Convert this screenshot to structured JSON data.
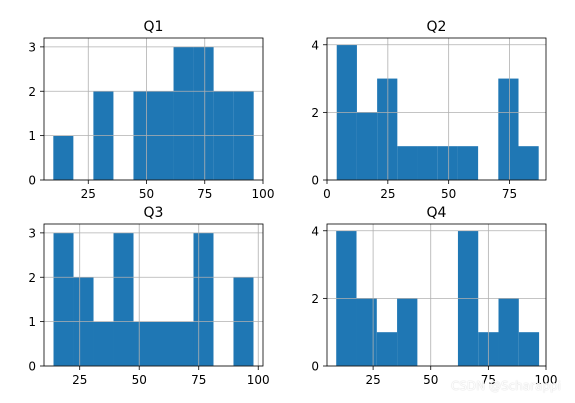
{
  "colors": {
    "bar": "#1f77b4",
    "grid": "#b0b0b0",
    "axis": "#000000",
    "background": "#ffffff"
  },
  "watermark": "CSDN @Scharappi",
  "chart_data": [
    {
      "type": "bar",
      "title": "Q1",
      "grid": true,
      "xlim": [
        6,
        100
      ],
      "ylim": [
        0,
        3.2
      ],
      "xticks": [
        {
          "value": 25,
          "label": "25"
        },
        {
          "value": 50,
          "label": "50"
        },
        {
          "value": 75,
          "label": "75"
        },
        {
          "value": 100,
          "label": "100"
        }
      ],
      "yticks": [
        {
          "value": 0,
          "label": "0"
        },
        {
          "value": 1,
          "label": "1"
        },
        {
          "value": 2,
          "label": "2"
        },
        {
          "value": 3,
          "label": "3"
        }
      ],
      "bins": [
        {
          "x0": 10.0,
          "x1": 18.6,
          "count": 1
        },
        {
          "x0": 18.6,
          "x1": 27.2,
          "count": 0
        },
        {
          "x0": 27.2,
          "x1": 35.8,
          "count": 2
        },
        {
          "x0": 35.8,
          "x1": 44.4,
          "count": 0
        },
        {
          "x0": 44.4,
          "x1": 53.0,
          "count": 2
        },
        {
          "x0": 53.0,
          "x1": 61.6,
          "count": 2
        },
        {
          "x0": 61.6,
          "x1": 70.2,
          "count": 3
        },
        {
          "x0": 70.2,
          "x1": 78.8,
          "count": 3
        },
        {
          "x0": 78.8,
          "x1": 87.4,
          "count": 2
        },
        {
          "x0": 87.4,
          "x1": 96.0,
          "count": 2
        }
      ]
    },
    {
      "type": "bar",
      "title": "Q2",
      "grid": true,
      "xlim": [
        0,
        90
      ],
      "ylim": [
        0,
        4.2
      ],
      "xticks": [
        {
          "value": 0,
          "label": "0"
        },
        {
          "value": 25,
          "label": "25"
        },
        {
          "value": 50,
          "label": "50"
        },
        {
          "value": 75,
          "label": "75"
        }
      ],
      "yticks": [
        {
          "value": 0,
          "label": "0"
        },
        {
          "value": 2,
          "label": "2"
        },
        {
          "value": 4,
          "label": "4"
        }
      ],
      "bins": [
        {
          "x0": 4.0,
          "x1": 12.3,
          "count": 4
        },
        {
          "x0": 12.3,
          "x1": 20.6,
          "count": 2
        },
        {
          "x0": 20.6,
          "x1": 28.9,
          "count": 3
        },
        {
          "x0": 28.9,
          "x1": 37.2,
          "count": 1
        },
        {
          "x0": 37.2,
          "x1": 45.5,
          "count": 1
        },
        {
          "x0": 45.5,
          "x1": 53.8,
          "count": 1
        },
        {
          "x0": 53.8,
          "x1": 62.1,
          "count": 1
        },
        {
          "x0": 62.1,
          "x1": 70.4,
          "count": 0
        },
        {
          "x0": 70.4,
          "x1": 78.7,
          "count": 3
        },
        {
          "x0": 78.7,
          "x1": 87.0,
          "count": 1
        }
      ]
    },
    {
      "type": "bar",
      "title": "Q3",
      "grid": true,
      "xlim": [
        10,
        102
      ],
      "ylim": [
        0,
        3.2
      ],
      "xticks": [
        {
          "value": 25,
          "label": "25"
        },
        {
          "value": 50,
          "label": "50"
        },
        {
          "value": 75,
          "label": "75"
        },
        {
          "value": 100,
          "label": "100"
        }
      ],
      "yticks": [
        {
          "value": 0,
          "label": "0"
        },
        {
          "value": 1,
          "label": "1"
        },
        {
          "value": 2,
          "label": "2"
        },
        {
          "value": 3,
          "label": "3"
        }
      ],
      "bins": [
        {
          "x0": 14.0,
          "x1": 22.4,
          "count": 3
        },
        {
          "x0": 22.4,
          "x1": 30.8,
          "count": 2
        },
        {
          "x0": 30.8,
          "x1": 39.2,
          "count": 1
        },
        {
          "x0": 39.2,
          "x1": 47.6,
          "count": 3
        },
        {
          "x0": 47.6,
          "x1": 56.0,
          "count": 1
        },
        {
          "x0": 56.0,
          "x1": 64.4,
          "count": 1
        },
        {
          "x0": 64.4,
          "x1": 72.8,
          "count": 1
        },
        {
          "x0": 72.8,
          "x1": 81.2,
          "count": 3
        },
        {
          "x0": 81.2,
          "x1": 89.6,
          "count": 0
        },
        {
          "x0": 89.6,
          "x1": 98.0,
          "count": 2
        }
      ]
    },
    {
      "type": "bar",
      "title": "Q4",
      "grid": true,
      "xlim": [
        5,
        100
      ],
      "ylim": [
        0,
        4.2
      ],
      "xticks": [
        {
          "value": 25,
          "label": "25"
        },
        {
          "value": 50,
          "label": "50"
        },
        {
          "value": 75,
          "label": "75"
        },
        {
          "value": 100,
          "label": "100"
        }
      ],
      "yticks": [
        {
          "value": 0,
          "label": "0"
        },
        {
          "value": 2,
          "label": "2"
        },
        {
          "value": 4,
          "label": "4"
        }
      ],
      "bins": [
        {
          "x0": 9.0,
          "x1": 17.8,
          "count": 4
        },
        {
          "x0": 17.8,
          "x1": 26.6,
          "count": 2
        },
        {
          "x0": 26.6,
          "x1": 35.4,
          "count": 1
        },
        {
          "x0": 35.4,
          "x1": 44.2,
          "count": 2
        },
        {
          "x0": 44.2,
          "x1": 53.0,
          "count": 0
        },
        {
          "x0": 53.0,
          "x1": 61.8,
          "count": 0
        },
        {
          "x0": 61.8,
          "x1": 70.6,
          "count": 4
        },
        {
          "x0": 70.6,
          "x1": 79.4,
          "count": 1
        },
        {
          "x0": 79.4,
          "x1": 88.2,
          "count": 2
        },
        {
          "x0": 88.2,
          "x1": 97.0,
          "count": 1
        }
      ]
    }
  ]
}
